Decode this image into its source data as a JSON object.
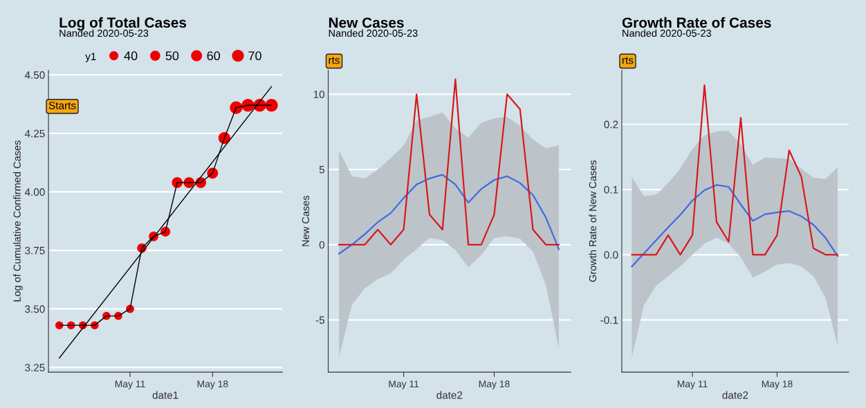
{
  "chart_data": [
    {
      "type": "bubble",
      "title": "Log of Total Cases",
      "subtitle": "Nanded 2020-05-23",
      "xlabel": "date1",
      "ylabel": "Log of Cumulative Confirmed Cases",
      "legend_title": "y1",
      "grid": "y",
      "annotations": [
        "Starts"
      ],
      "x": [
        "2020-05-05",
        "2020-05-06",
        "2020-05-07",
        "2020-05-08",
        "2020-05-09",
        "2020-05-10",
        "2020-05-11",
        "2020-05-12",
        "2020-05-13",
        "2020-05-14",
        "2020-05-15",
        "2020-05-16",
        "2020-05-17",
        "2020-05-18",
        "2020-05-19",
        "2020-05-20",
        "2020-05-21",
        "2020-05-22",
        "2020-05-23"
      ],
      "size_legend": [
        40,
        50,
        60,
        70
      ],
      "series": [
        {
          "type": "bubble",
          "color": "#ee0000",
          "values": [
            3.43,
            3.43,
            3.43,
            3.43,
            3.47,
            3.47,
            3.5,
            3.76,
            3.81,
            3.83,
            4.04,
            4.04,
            4.04,
            4.08,
            4.23,
            4.36,
            4.37,
            4.37,
            4.37
          ],
          "sizes": [
            31,
            31,
            31,
            31,
            32,
            32,
            33,
            43,
            45,
            46,
            57,
            57,
            57,
            59,
            69,
            78,
            79,
            79,
            79
          ]
        },
        {
          "type": "line",
          "color": "#000000",
          "values": [
            3.43,
            3.43,
            3.43,
            3.43,
            3.47,
            3.47,
            3.5,
            3.76,
            3.81,
            3.83,
            4.04,
            4.04,
            4.04,
            4.08,
            4.23,
            4.36,
            4.37,
            4.37,
            4.37
          ]
        },
        {
          "type": "line",
          "color": "#000000",
          "x": [
            "2020-05-05",
            "2020-05-23"
          ],
          "values": [
            3.29,
            4.45
          ]
        }
      ],
      "xlim": [
        "2020-05-04T02:00",
        "2020-05-23T22:00"
      ],
      "xticks": [
        {
          "value": "2020-05-11",
          "label": "May 11"
        },
        {
          "value": "2020-05-18",
          "label": "May 18"
        }
      ],
      "ylim": [
        3.23,
        4.52
      ],
      "yticks": [
        {
          "value": 3.25,
          "label": "3.25"
        },
        {
          "value": 3.5,
          "label": "3.50"
        },
        {
          "value": 3.75,
          "label": "3.75"
        },
        {
          "value": 4.0,
          "label": "4.00"
        },
        {
          "value": 4.25,
          "label": "4.25"
        },
        {
          "value": 4.5,
          "label": "4.50"
        }
      ]
    },
    {
      "type": "line",
      "title": "New Cases",
      "subtitle": "Nanded 2020-05-23",
      "xlabel": "date2",
      "ylabel": "New Cases",
      "grid": "y",
      "annotations": [
        "rts"
      ],
      "x": [
        "2020-05-06",
        "2020-05-07",
        "2020-05-08",
        "2020-05-09",
        "2020-05-10",
        "2020-05-11",
        "2020-05-12",
        "2020-05-13",
        "2020-05-14",
        "2020-05-15",
        "2020-05-16",
        "2020-05-17",
        "2020-05-18",
        "2020-05-19",
        "2020-05-20",
        "2020-05-21",
        "2020-05-22",
        "2020-05-23"
      ],
      "series": [
        {
          "type": "line",
          "color": "#4169e1",
          "values": [
            -0.6,
            0.0,
            0.7,
            1.5,
            2.1,
            3.1,
            4.0,
            4.4,
            4.65,
            4.0,
            2.8,
            3.7,
            4.3,
            4.55,
            4.1,
            3.3,
            1.8,
            -0.3
          ],
          "lower": [
            -7.5,
            -4.0,
            -2.9,
            -2.3,
            -1.9,
            -1.0,
            -0.3,
            0.45,
            0.3,
            -0.35,
            -1.5,
            -0.7,
            0.45,
            0.55,
            0.4,
            -0.45,
            -2.7,
            -6.9
          ],
          "upper": [
            6.25,
            4.55,
            4.4,
            5.0,
            5.75,
            6.6,
            8.25,
            8.5,
            8.8,
            7.75,
            7.1,
            8.1,
            8.4,
            8.5,
            7.9,
            7.0,
            6.4,
            6.6
          ]
        },
        {
          "type": "line",
          "color": "#d7191c",
          "values": [
            0,
            0,
            0,
            1,
            0,
            1,
            10,
            2,
            1,
            11,
            0,
            0,
            2,
            10,
            9,
            1,
            0,
            0
          ]
        }
      ],
      "xlim": [
        "2020-05-05T04:00",
        "2020-05-23T22:00"
      ],
      "xticks": [
        {
          "value": "2020-05-11",
          "label": "May 11"
        },
        {
          "value": "2020-05-18",
          "label": "May 18"
        }
      ],
      "ylim": [
        -8.47,
        11.6
      ],
      "yticks": [
        -5,
        0,
        5,
        10
      ]
    },
    {
      "type": "line",
      "title": "Growth Rate of Cases",
      "subtitle": "Nanded 2020-05-23",
      "xlabel": "date2",
      "ylabel": "Growth Rate of New Cases",
      "grid": "y",
      "annotations": [
        "rts"
      ],
      "x": [
        "2020-05-06",
        "2020-05-07",
        "2020-05-08",
        "2020-05-09",
        "2020-05-10",
        "2020-05-11",
        "2020-05-12",
        "2020-05-13",
        "2020-05-14",
        "2020-05-15",
        "2020-05-16",
        "2020-05-17",
        "2020-05-18",
        "2020-05-19",
        "2020-05-20",
        "2020-05-21",
        "2020-05-22",
        "2020-05-23"
      ],
      "series": [
        {
          "type": "line",
          "color": "#4169e1",
          "values": [
            -0.018,
            0.002,
            0.022,
            0.042,
            0.061,
            0.083,
            0.099,
            0.107,
            0.104,
            0.077,
            0.052,
            0.062,
            0.065,
            0.067,
            0.059,
            0.046,
            0.026,
            -0.002
          ],
          "lower": [
            -0.158,
            -0.077,
            -0.048,
            -0.033,
            -0.018,
            0.0,
            0.017,
            0.026,
            0.017,
            -0.004,
            -0.035,
            -0.026,
            -0.015,
            -0.013,
            -0.018,
            -0.033,
            -0.066,
            -0.14
          ],
          "upper": [
            0.119,
            0.09,
            0.092,
            0.11,
            0.132,
            0.162,
            0.183,
            0.189,
            0.19,
            0.169,
            0.138,
            0.149,
            0.148,
            0.147,
            0.132,
            0.118,
            0.116,
            0.134
          ]
        },
        {
          "type": "line",
          "color": "#d7191c",
          "values": [
            0,
            0,
            0,
            0.03,
            0,
            0.03,
            0.26,
            0.05,
            0.02,
            0.21,
            0,
            0,
            0.03,
            0.16,
            0.12,
            0.01,
            0,
            0
          ]
        }
      ],
      "xlim": [
        "2020-05-05T04:00",
        "2020-05-23T22:00"
      ],
      "xticks": [
        {
          "value": "2020-05-11",
          "label": "May 11"
        },
        {
          "value": "2020-05-18",
          "label": "May 18"
        }
      ],
      "ylim": [
        -0.18,
        0.283
      ],
      "yticks": [
        {
          "value": -0.1,
          "label": "-0.1"
        },
        {
          "value": 0.0,
          "label": "0.0"
        },
        {
          "value": 0.1,
          "label": "0.1"
        },
        {
          "value": 0.2,
          "label": "0.2"
        }
      ]
    }
  ]
}
